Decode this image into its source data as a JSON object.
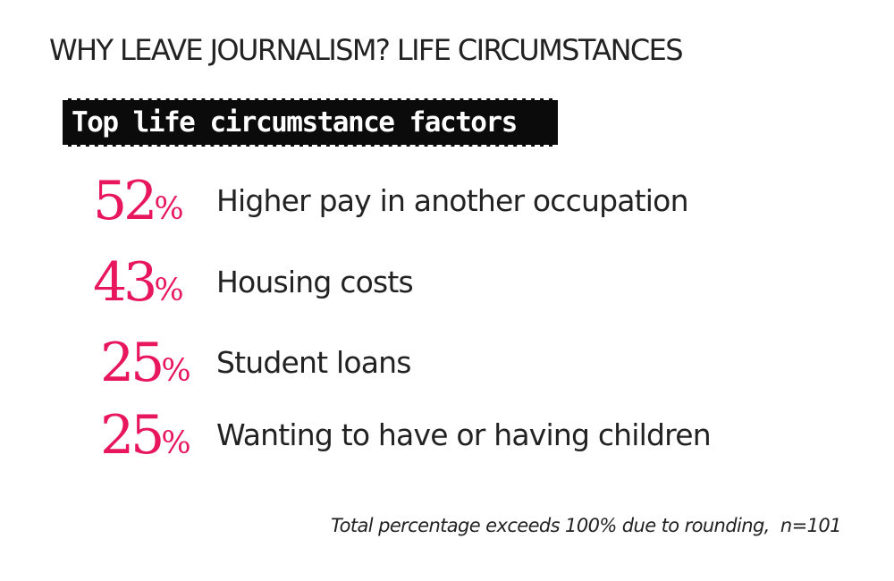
{
  "page": {
    "title": "WHY LEAVE JOURNALISM? LIFE CIRCUMSTANCES"
  },
  "banner": {
    "label": "Top life circumstance factors"
  },
  "colors": {
    "accent": "#e8175d",
    "banner_bg": "#0b0b0b",
    "text": "#222222"
  },
  "factors": [
    {
      "percent": "52",
      "percent_sign": "%",
      "label": "Higher pay in another occupation"
    },
    {
      "percent": "43",
      "percent_sign": "%",
      "label": "Housing costs"
    },
    {
      "percent": "25",
      "percent_sign": "%",
      "label": "Student loans"
    },
    {
      "percent": "25",
      "percent_sign": "%",
      "label": "Wanting to have or having children"
    }
  ],
  "footnote": "Total percentage exceeds 100% due to rounding,  n=101"
}
